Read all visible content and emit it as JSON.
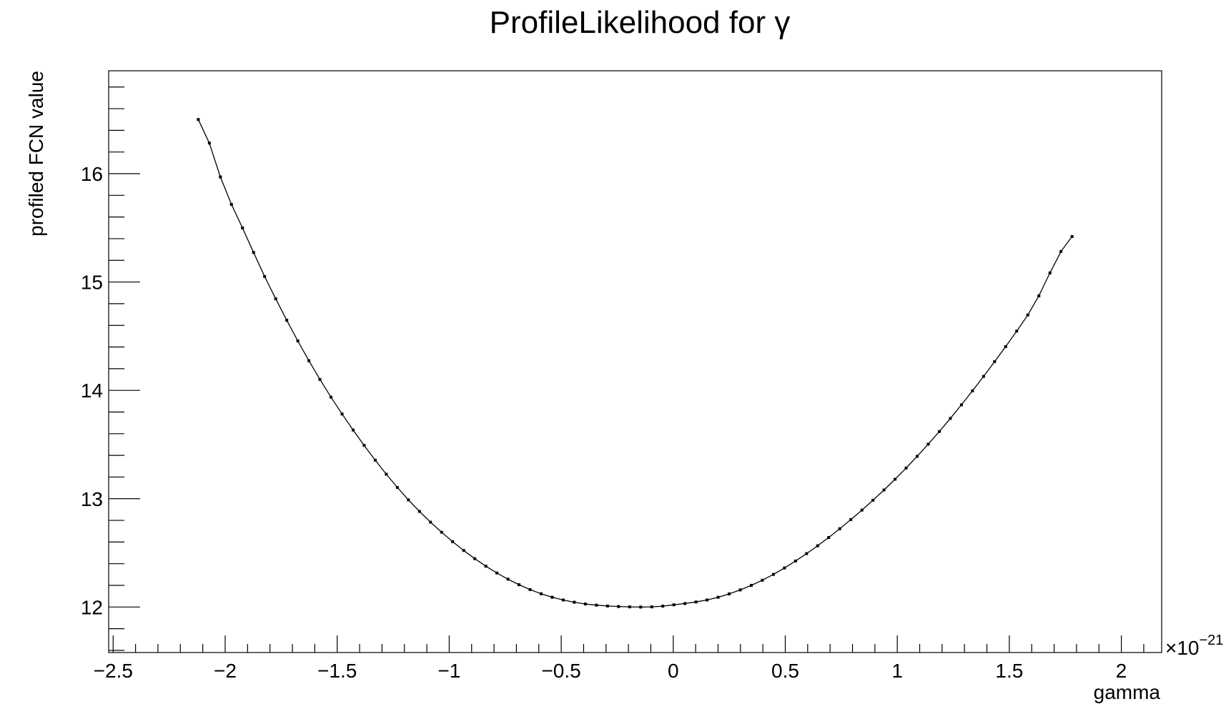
{
  "chart_data": {
    "type": "line",
    "title": "ProfileLikelihood for γ",
    "xlabel": "gamma",
    "ylabel": "profiled FCN value",
    "x_exponent_base": "×10",
    "x_exponent_power": "−21",
    "xlim": [
      -2.52,
      2.18
    ],
    "ylim": [
      11.58,
      16.95
    ],
    "x_major_ticks": [
      -2.5,
      -2,
      -1.5,
      -1,
      -0.5,
      0,
      0.5,
      1,
      1.5,
      2
    ],
    "x_tick_labels": [
      "−2.5",
      "−2",
      "−1.5",
      "−1",
      "−0.5",
      "0",
      "0.5",
      "1",
      "1.5",
      "2"
    ],
    "x_minor_step": 0.1,
    "y_major_ticks": [
      12,
      13,
      14,
      15,
      16
    ],
    "y_tick_labels": [
      "12",
      "13",
      "14",
      "15",
      "16"
    ],
    "y_minor_step": 0.2,
    "grid": false,
    "legend": "none",
    "x_min": -2.12,
    "x_max": 1.78,
    "x_at_min": -0.15,
    "y_min_value": 12.0,
    "n_points": 80,
    "series": [
      {
        "x_samples": [
          -2.12,
          -2.0,
          -1.8,
          -1.6,
          -1.4,
          -1.2,
          -1.0,
          -0.8,
          -0.6,
          -0.4,
          -0.15,
          0.0,
          0.2,
          0.4,
          0.6,
          0.8,
          1.0,
          1.2,
          1.4,
          1.6,
          1.78
        ],
        "y_samples": [
          16.5,
          15.83,
          14.95,
          14.18,
          13.55,
          13.03,
          12.63,
          12.33,
          12.13,
          12.03,
          12.0,
          12.02,
          12.09,
          12.25,
          12.5,
          12.82,
          13.2,
          13.65,
          14.17,
          14.75,
          15.42
        ]
      }
    ]
  }
}
